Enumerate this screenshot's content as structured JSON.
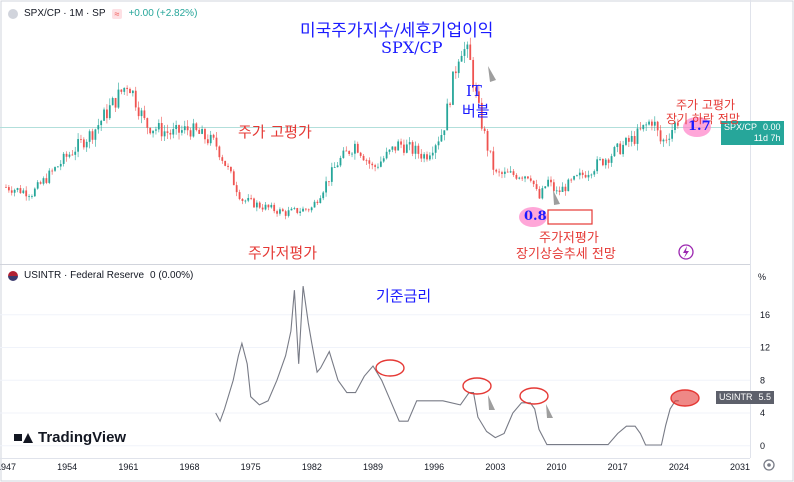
{
  "top_legend": {
    "symbol": "SPX/CP · 1M · SP",
    "change": "+0.00 (+2.82%)",
    "symbol_icon": "spx-logo-icon",
    "wave_icon": "wave-icon"
  },
  "bottom_legend": {
    "symbol": "USINTR · Federal Reserve",
    "value": "0 (0.00%)",
    "flag_icon": "us-flag-icon"
  },
  "price_axis_badge": {
    "label": "SPX/CP",
    "value": "0.00",
    "countdown": "11d 7h"
  },
  "rate_axis_badge": {
    "label": "USINTR",
    "value": "5.5"
  },
  "rate_axis_unit": "%",
  "brand": "TradingView",
  "annotations": {
    "title_line1": "미국주가지수/세후기업이익",
    "title_line2": "SPX/CP",
    "overvalued_left": "주가 고평가",
    "undervalued_left": "주가저평가",
    "it_bubble_1": "IT",
    "it_bubble_2": "버블",
    "undervalued_right_1": "주가저평가",
    "undervalued_right_2": "장기상승추세 전망",
    "overvalued_right_1": "주가 고평가",
    "overvalued_right_2": "장기 하락 전망",
    "mark_low": "0.8",
    "mark_high": "1.7",
    "rate_title": "기준금리"
  },
  "colors": {
    "up": "#26a69a",
    "down": "#ef5350",
    "rate_line": "#787b86",
    "annot_red": "#e53935",
    "annot_blue": "#1a1aff",
    "highlight": "#ff80c8"
  },
  "chart_data": [
    {
      "type": "candlestick",
      "name": "SPX/CP",
      "x": [
        1947,
        1950,
        1954,
        1957,
        1961,
        1963,
        1966,
        1968,
        1971,
        1974,
        1976,
        1979,
        1982,
        1985,
        1987,
        1989,
        1992,
        1995,
        1997,
        1999,
        2000,
        2001,
        2002,
        2003,
        2005,
        2007,
        2008,
        2009,
        2010,
        2013,
        2016,
        2019,
        2021,
        2022,
        2024
      ],
      "y": [
        0.95,
        0.9,
        1.2,
        1.4,
        1.8,
        1.45,
        1.38,
        1.42,
        1.3,
        0.85,
        0.8,
        0.74,
        0.78,
        1.15,
        1.3,
        1.1,
        1.3,
        1.2,
        1.4,
        2.1,
        2.0,
        1.6,
        1.3,
        1.05,
        1.05,
        1.05,
        0.85,
        1.0,
        0.9,
        1.05,
        1.2,
        1.35,
        1.5,
        1.3,
        1.5
      ]
    },
    {
      "type": "line",
      "name": "USINTR",
      "unit": "%",
      "x": [
        1971,
        1971.5,
        1972,
        1973,
        1973.6,
        1974,
        1974.6,
        1975,
        1976,
        1977,
        1978,
        1979,
        1979.6,
        1980,
        1980.5,
        1981,
        1981.6,
        1982,
        1982.6,
        1983,
        1984,
        1985,
        1986,
        1987,
        1988,
        1989,
        1990,
        1991,
        1992,
        1993,
        1994,
        1995,
        1997,
        1999,
        2000,
        2000.5,
        2001,
        2002,
        2003,
        2004,
        2005,
        2006,
        2007,
        2007.5,
        2008,
        2008.9,
        2015.9,
        2017,
        2018,
        2019,
        2019.6,
        2020.2,
        2022,
        2022.5,
        2023,
        2023.6,
        2024
      ],
      "y": [
        4.0,
        3.0,
        4.5,
        8.0,
        11.0,
        12.5,
        10.0,
        6.0,
        5.0,
        5.5,
        8.0,
        11.0,
        14.0,
        19.0,
        10.0,
        19.5,
        15.0,
        12.5,
        9.0,
        9.5,
        11.5,
        8.0,
        6.5,
        6.5,
        8.5,
        9.75,
        8.0,
        5.5,
        3.0,
        3.0,
        5.5,
        5.5,
        5.5,
        5.0,
        6.5,
        6.5,
        3.5,
        1.75,
        1.0,
        1.5,
        4.0,
        5.25,
        5.25,
        4.5,
        2.0,
        0.15,
        0.15,
        1.5,
        2.4,
        2.4,
        1.5,
        0.1,
        0.1,
        2.5,
        4.5,
        5.5,
        5.5
      ],
      "ylim": [
        -1,
        20
      ],
      "yticks": [
        0,
        4,
        8,
        12,
        16
      ]
    }
  ],
  "x_axis": {
    "ticks": [
      "1947",
      "1954",
      "1961",
      "1968",
      "1975",
      "1982",
      "1989",
      "1996",
      "2003",
      "2010",
      "2017",
      "2024",
      "2031"
    ],
    "range": [
      1947,
      2031
    ]
  },
  "price_scale": {
    "ylim": [
      0.4,
      2.3
    ]
  }
}
